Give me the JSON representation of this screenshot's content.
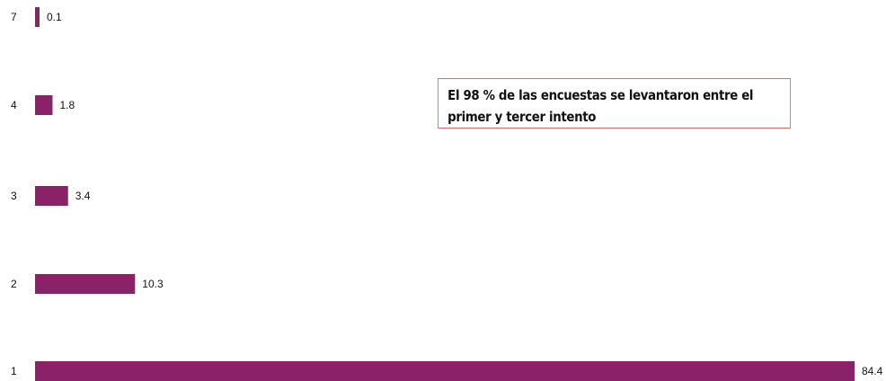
{
  "chart_data": {
    "type": "bar",
    "orientation": "horizontal",
    "categories": [
      "7",
      "4",
      "3",
      "2",
      "1"
    ],
    "values": [
      0.1,
      1.8,
      3.4,
      10.3,
      84.4
    ],
    "value_labels": [
      "0.1",
      "1.8",
      "3.4",
      "10.3",
      "84.4"
    ],
    "title": "",
    "xlabel": "",
    "ylabel": "",
    "xlim": [
      0,
      84.4
    ],
    "grid": false,
    "legend": "none",
    "bar_color": "#8b2166"
  },
  "annotation": {
    "text": "El 98 % de las encuestas se levantaron entre el primer y tercer intento",
    "border_color": "#e06666"
  }
}
